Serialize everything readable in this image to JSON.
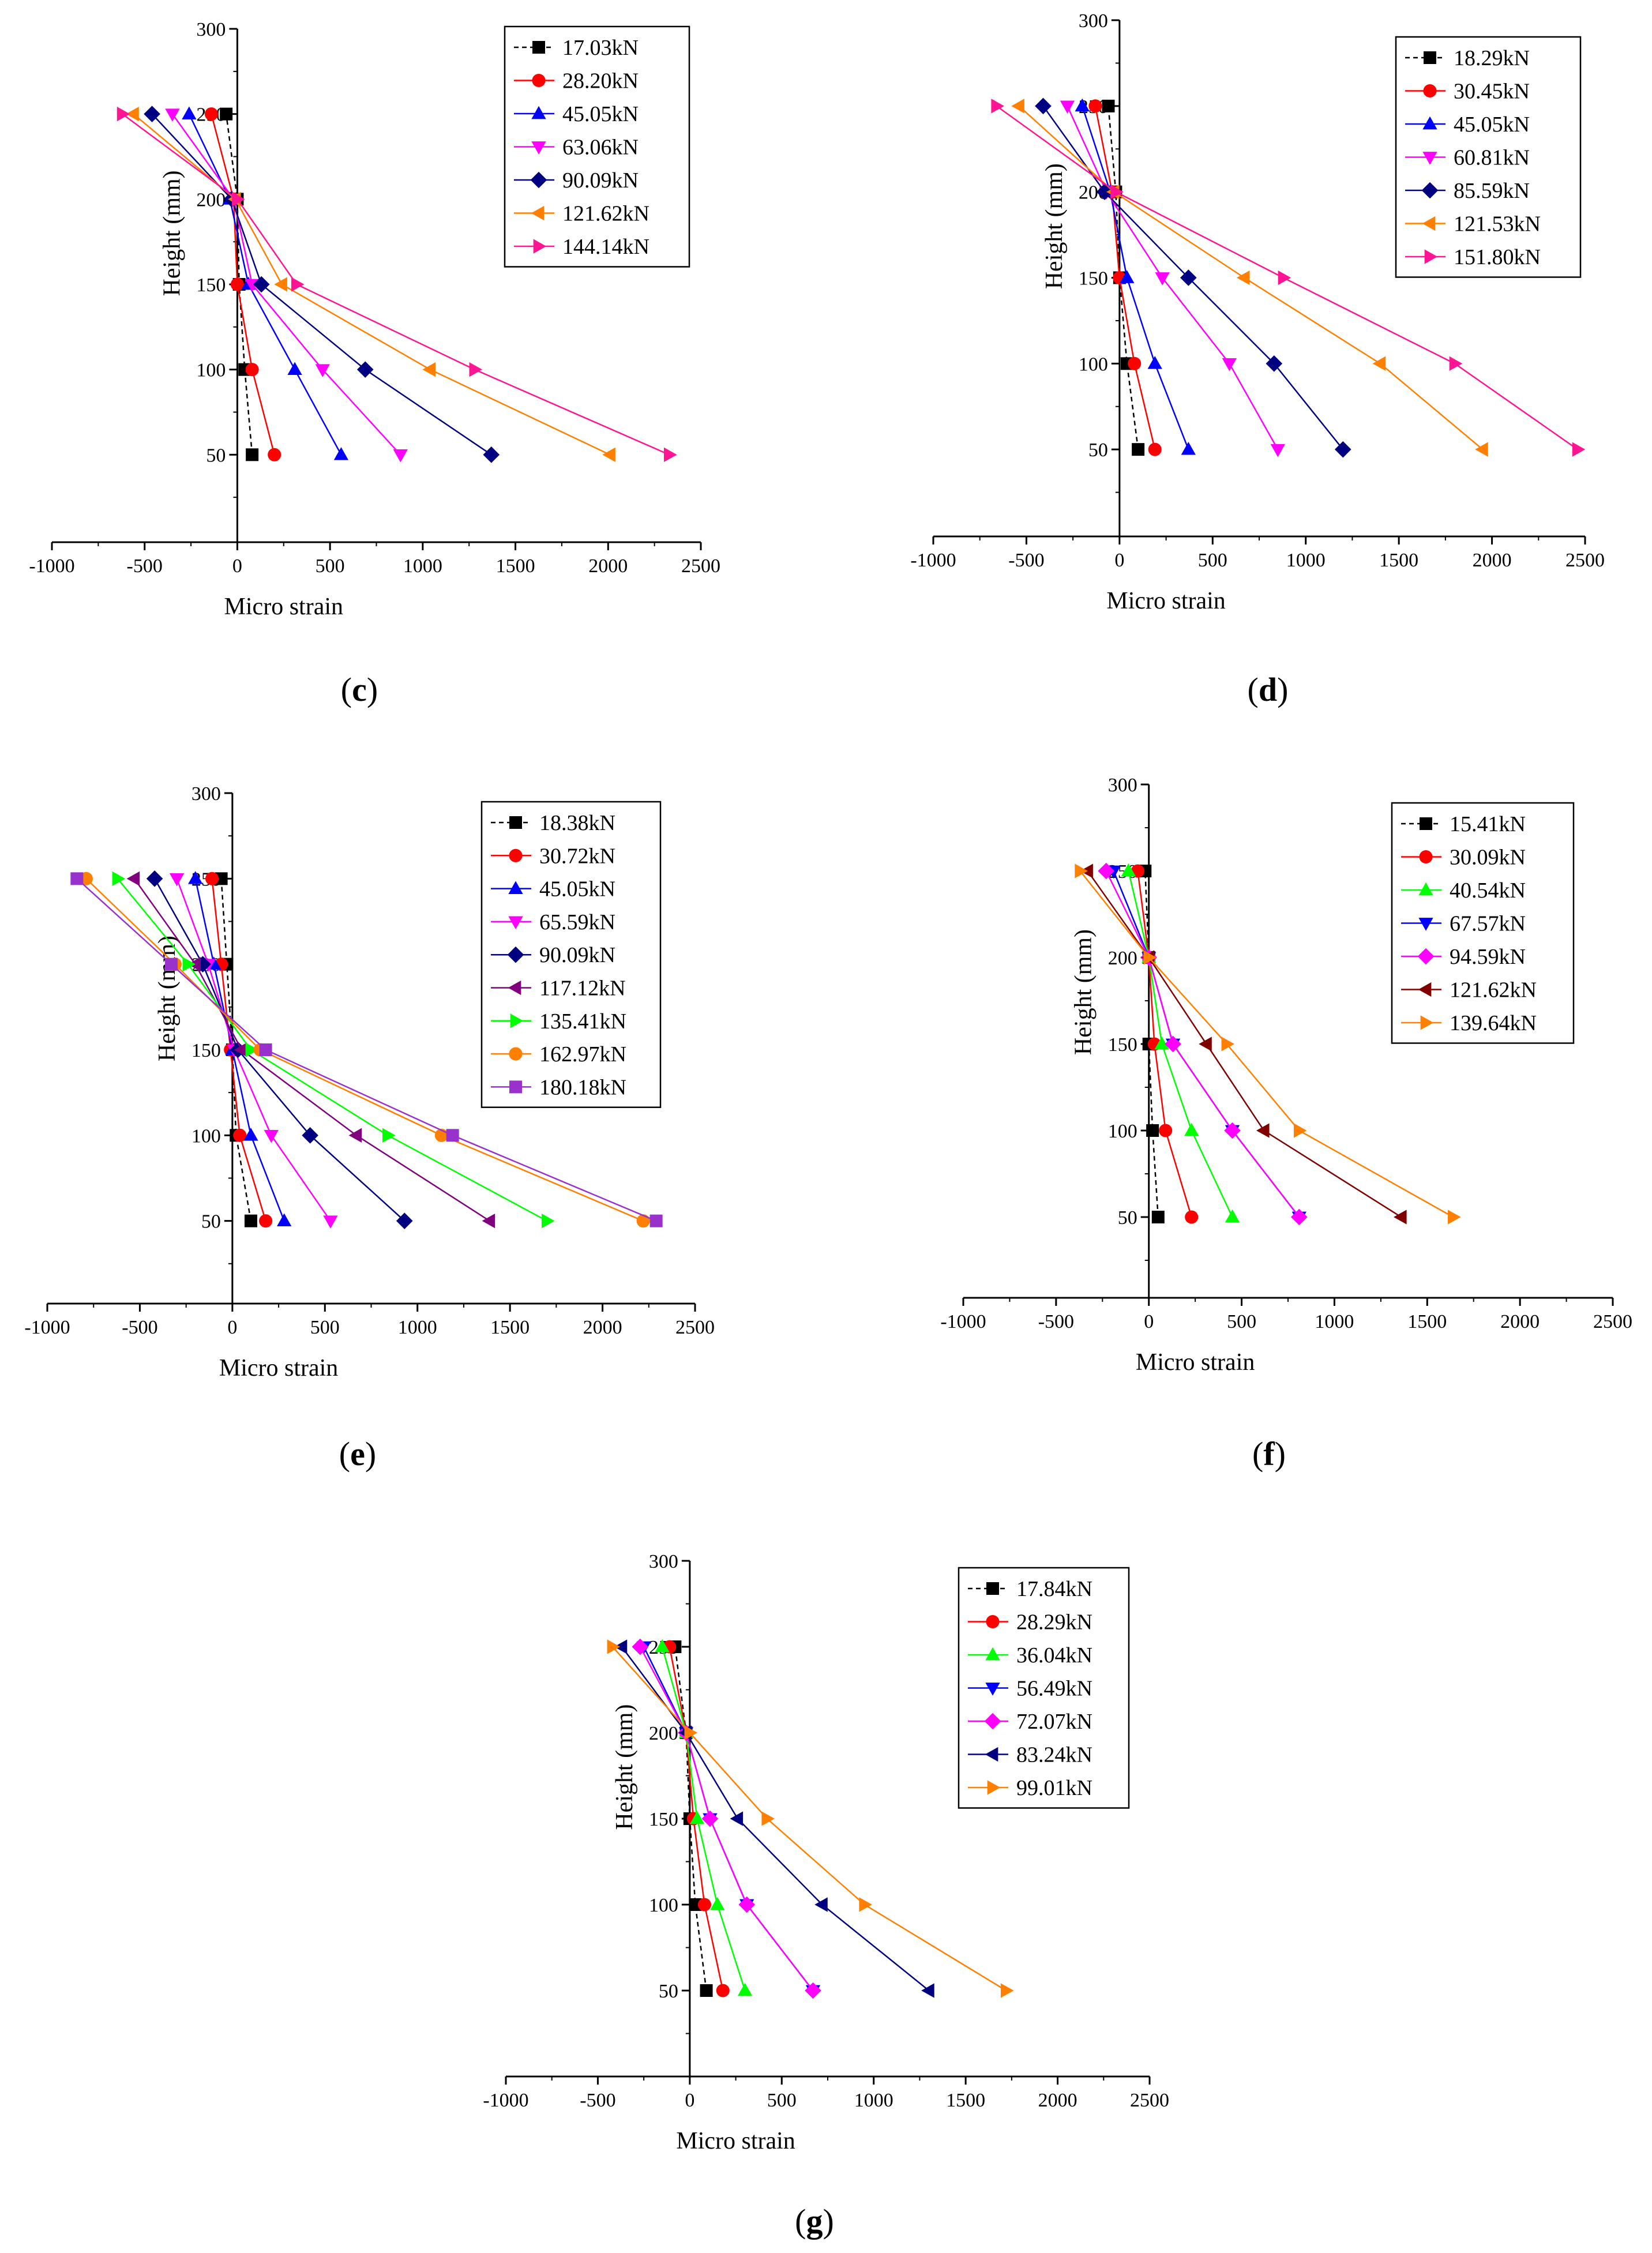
{
  "figure": {
    "panel_labels": [
      {
        "paren_open": "(",
        "letter": "c",
        "paren_close": ")"
      },
      {
        "paren_open": "(",
        "letter": "d",
        "paren_close": ")"
      },
      {
        "paren_open": "(",
        "letter": "e",
        "paren_close": ")"
      },
      {
        "paren_open": "(",
        "letter": "f",
        "paren_close": ")"
      },
      {
        "paren_open": "(",
        "letter": "g",
        "paren_close": ")"
      }
    ]
  },
  "chart_data": [
    {
      "panel": "c",
      "type": "line",
      "xlabel": "Micro strain",
      "ylabel": "Height (mm)",
      "xlim": [
        -1000,
        2500
      ],
      "ylim": [
        0,
        300
      ],
      "x_ticks": [
        -1000,
        -500,
        0,
        500,
        1000,
        1500,
        2000,
        2500
      ],
      "y_ticks": [
        50,
        100,
        150,
        200,
        250,
        300
      ],
      "grid": false,
      "legend_position": "top-right",
      "heights": [
        50,
        100,
        150,
        200,
        250
      ],
      "series": [
        {
          "name": "17.03kN",
          "color": "#000000",
          "marker": "square",
          "dashed": true,
          "x": [
            80,
            40,
            10,
            0,
            -60
          ]
        },
        {
          "name": "28.20kN",
          "color": "#ff0000",
          "marker": "circle",
          "dashed": false,
          "x": [
            200,
            80,
            0,
            -20,
            -140
          ]
        },
        {
          "name": "45.05kN",
          "color": "#0000ff",
          "marker": "triangle-up",
          "dashed": false,
          "x": [
            560,
            310,
            60,
            -40,
            -260
          ]
        },
        {
          "name": "63.06kN",
          "color": "#ff00ff",
          "marker": "triangle-down",
          "dashed": false,
          "x": [
            880,
            460,
            80,
            -20,
            -350
          ]
        },
        {
          "name": "90.09kN",
          "color": "#000080",
          "marker": "diamond",
          "dashed": false,
          "x": [
            1370,
            690,
            130,
            -30,
            -460
          ]
        },
        {
          "name": "121.62kN",
          "color": "#ff8000",
          "marker": "triangle-left",
          "dashed": false,
          "x": [
            2010,
            1040,
            240,
            -10,
            -560
          ]
        },
        {
          "name": "144.14kN",
          "color": "#ff1493",
          "marker": "triangle-right",
          "dashed": false,
          "x": [
            2330,
            1280,
            320,
            0,
            -620
          ]
        }
      ]
    },
    {
      "panel": "d",
      "type": "line",
      "xlabel": "Micro strain",
      "ylabel": "Height (mm)",
      "xlim": [
        -1000,
        2500
      ],
      "ylim": [
        0,
        300
      ],
      "x_ticks": [
        -1000,
        -500,
        0,
        500,
        1000,
        1500,
        2000,
        2500
      ],
      "y_ticks": [
        50,
        100,
        150,
        200,
        250,
        300
      ],
      "grid": false,
      "legend_position": "top-right",
      "heights": [
        50,
        100,
        150,
        200,
        250
      ],
      "series": [
        {
          "name": "18.29kN",
          "color": "#000000",
          "marker": "square",
          "dashed": true,
          "x": [
            100,
            40,
            0,
            -20,
            -60
          ]
        },
        {
          "name": "30.45kN",
          "color": "#ff0000",
          "marker": "circle",
          "dashed": false,
          "x": [
            190,
            80,
            0,
            -40,
            -130
          ]
        },
        {
          "name": "45.05kN",
          "color": "#0000ff",
          "marker": "triangle-up",
          "dashed": false,
          "x": [
            370,
            190,
            40,
            -50,
            -200
          ]
        },
        {
          "name": "60.81kN",
          "color": "#ff00ff",
          "marker": "triangle-down",
          "dashed": false,
          "x": [
            850,
            590,
            230,
            -70,
            -280
          ]
        },
        {
          "name": "85.59kN",
          "color": "#000080",
          "marker": "diamond",
          "dashed": false,
          "x": [
            1200,
            830,
            370,
            -80,
            -410
          ]
        },
        {
          "name": "121.53kN",
          "color": "#ff8000",
          "marker": "triangle-left",
          "dashed": false,
          "x": [
            1950,
            1400,
            670,
            -30,
            -540
          ]
        },
        {
          "name": "151.80kN",
          "color": "#ff1493",
          "marker": "triangle-right",
          "dashed": false,
          "x": [
            2460,
            1800,
            880,
            -20,
            -660
          ]
        }
      ]
    },
    {
      "panel": "e",
      "type": "line",
      "xlabel": "Micro strain",
      "ylabel": "Height (mm)",
      "xlim": [
        -1000,
        2500
      ],
      "ylim": [
        0,
        300
      ],
      "x_ticks": [
        -1000,
        -500,
        0,
        500,
        1000,
        1500,
        2000,
        2500
      ],
      "y_ticks": [
        50,
        100,
        150,
        200,
        250,
        300
      ],
      "grid": false,
      "legend_position": "top-right",
      "heights": [
        50,
        100,
        150,
        200,
        250
      ],
      "series": [
        {
          "name": "18.38kN",
          "color": "#000000",
          "marker": "square",
          "dashed": true,
          "x": [
            100,
            20,
            0,
            -30,
            -60
          ]
        },
        {
          "name": "30.72kN",
          "color": "#ff0000",
          "marker": "circle",
          "dashed": false,
          "x": [
            180,
            40,
            -10,
            -60,
            -110
          ]
        },
        {
          "name": "45.05kN",
          "color": "#0000ff",
          "marker": "triangle-up",
          "dashed": false,
          "x": [
            280,
            100,
            0,
            -100,
            -200
          ]
        },
        {
          "name": "65.59kN",
          "color": "#ff00ff",
          "marker": "triangle-down",
          "dashed": false,
          "x": [
            530,
            210,
            10,
            -130,
            -300
          ]
        },
        {
          "name": "90.09kN",
          "color": "#000080",
          "marker": "diamond",
          "dashed": false,
          "x": [
            930,
            420,
            30,
            -160,
            -420
          ]
        },
        {
          "name": "117.12kN",
          "color": "#800080",
          "marker": "triangle-left",
          "dashed": false,
          "x": [
            1390,
            670,
            50,
            -200,
            -530
          ]
        },
        {
          "name": "135.41kN",
          "color": "#00ff00",
          "marker": "triangle-right",
          "dashed": false,
          "x": [
            1700,
            840,
            100,
            -240,
            -620
          ]
        },
        {
          "name": "162.97kN",
          "color": "#ff8000",
          "marker": "circle",
          "dashed": false,
          "x": [
            2220,
            1130,
            150,
            -310,
            -790
          ]
        },
        {
          "name": "180.18kN",
          "color": "#9932cc",
          "marker": "square",
          "dashed": false,
          "x": [
            2290,
            1190,
            180,
            -330,
            -840
          ]
        }
      ]
    },
    {
      "panel": "f",
      "type": "line",
      "xlabel": "Micro strain",
      "ylabel": "Height (mm)",
      "xlim": [
        -1000,
        2500
      ],
      "ylim": [
        0,
        300
      ],
      "x_ticks": [
        -1000,
        -500,
        0,
        500,
        1000,
        1500,
        2000,
        2500
      ],
      "y_ticks": [
        50,
        100,
        150,
        200,
        250,
        300
      ],
      "grid": false,
      "legend_position": "top-right",
      "heights": [
        50,
        100,
        150,
        200,
        250
      ],
      "series": [
        {
          "name": "15.41kN",
          "color": "#000000",
          "marker": "square",
          "dashed": true,
          "x": [
            50,
            20,
            0,
            0,
            -20
          ]
        },
        {
          "name": "30.09kN",
          "color": "#ff0000",
          "marker": "circle",
          "dashed": false,
          "x": [
            230,
            90,
            30,
            0,
            -60
          ]
        },
        {
          "name": "40.54kN",
          "color": "#00ff00",
          "marker": "triangle-up",
          "dashed": false,
          "x": [
            450,
            230,
            70,
            0,
            -110
          ]
        },
        {
          "name": "67.57kN",
          "color": "#0000ff",
          "marker": "triangle-down",
          "dashed": false,
          "x": [
            810,
            450,
            130,
            0,
            -190
          ]
        },
        {
          "name": "94.59kN",
          "color": "#ff00ff",
          "marker": "diamond",
          "dashed": false,
          "x": [
            810,
            450,
            130,
            0,
            -230
          ]
        },
        {
          "name": "121.62kN",
          "color": "#800000",
          "marker": "triangle-left",
          "dashed": false,
          "x": [
            1360,
            620,
            310,
            0,
            -330
          ]
        },
        {
          "name": "139.64kN",
          "color": "#ff8000",
          "marker": "triangle-right",
          "dashed": false,
          "x": [
            1640,
            810,
            420,
            0,
            -370
          ]
        }
      ]
    },
    {
      "panel": "g",
      "type": "line",
      "xlabel": "Micro strain",
      "ylabel": "Height (mm)",
      "xlim": [
        -1000,
        2500
      ],
      "ylim": [
        0,
        300
      ],
      "x_ticks": [
        -1000,
        -500,
        0,
        500,
        1000,
        1500,
        2000,
        2500
      ],
      "y_ticks": [
        50,
        100,
        150,
        200,
        250,
        300
      ],
      "grid": false,
      "legend_position": "top-right",
      "heights": [
        50,
        100,
        150,
        200,
        250
      ],
      "series": [
        {
          "name": "17.84kN",
          "color": "#000000",
          "marker": "square",
          "dashed": true,
          "x": [
            90,
            30,
            0,
            -20,
            -80
          ]
        },
        {
          "name": "28.29kN",
          "color": "#ff0000",
          "marker": "circle",
          "dashed": false,
          "x": [
            180,
            80,
            20,
            -20,
            -110
          ]
        },
        {
          "name": "36.04kN",
          "color": "#00ff00",
          "marker": "triangle-up",
          "dashed": false,
          "x": [
            300,
            150,
            40,
            -20,
            -150
          ]
        },
        {
          "name": "56.49kN",
          "color": "#0000ff",
          "marker": "triangle-down",
          "dashed": false,
          "x": [
            670,
            310,
            110,
            -20,
            -250
          ]
        },
        {
          "name": "72.07kN",
          "color": "#ff00ff",
          "marker": "diamond",
          "dashed": false,
          "x": [
            670,
            310,
            110,
            -20,
            -270
          ]
        },
        {
          "name": "83.24kN",
          "color": "#000080",
          "marker": "triangle-left",
          "dashed": false,
          "x": [
            1300,
            720,
            260,
            -20,
            -370
          ]
        },
        {
          "name": "99.01kN",
          "color": "#ff8000",
          "marker": "triangle-right",
          "dashed": false,
          "x": [
            1720,
            950,
            420,
            0,
            -420
          ]
        }
      ]
    }
  ]
}
